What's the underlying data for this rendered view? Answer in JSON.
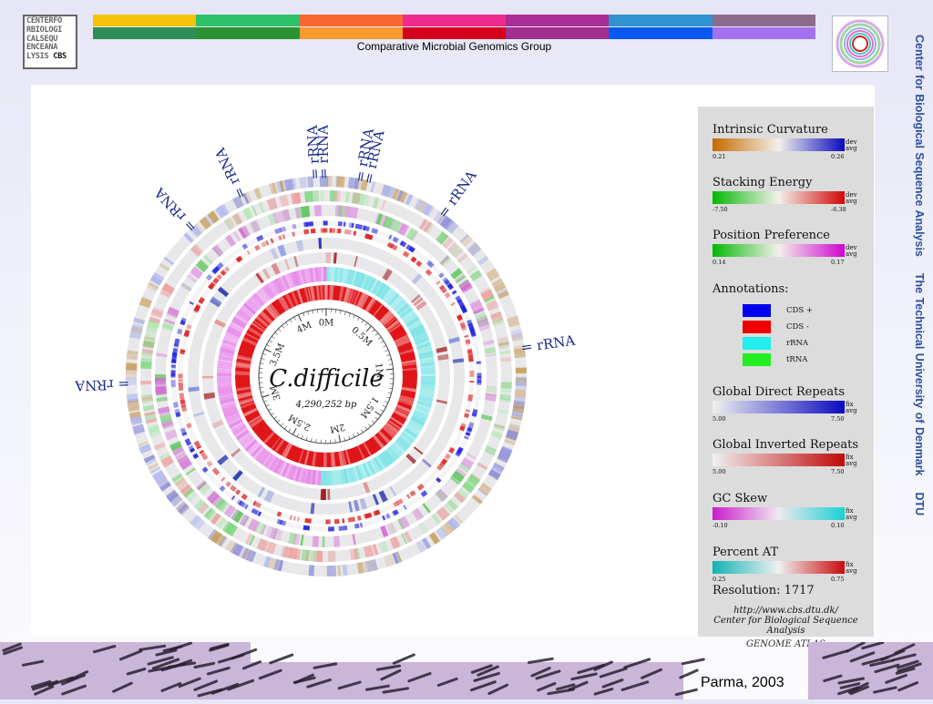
{
  "header": {
    "logo_lines": [
      "CENTERFO",
      "RBIOLOGI",
      "CALSEQU",
      "ENCEANA",
      "LYSIS"
    ],
    "logo_suffix": "CBS",
    "group_title": "Comparative Microbial Genomics Group",
    "bar_colors_top": [
      "#f6c20a",
      "#2bc269",
      "#f86730",
      "#f02b8e",
      "#ab2c94",
      "#2f93d0",
      "#8d6b8c"
    ],
    "bar_colors_bottom": [
      "#2d8f55",
      "#2d9232",
      "#fa9a30",
      "#d5001d",
      "#a12f8f",
      "#0b59f1",
      "#a472f1"
    ]
  },
  "side_text": [
    "Center for Biological Sequence Analysis",
    "The Technical University of Denmark",
    "DTU"
  ],
  "atlas": {
    "organism": "C.difficile",
    "size_label": "4,290,252 bp",
    "scale_labels": [
      "0M",
      "0.5M",
      "1M",
      "1.5M",
      "2M",
      "2.5M",
      "3M",
      "3.5M",
      "4M"
    ],
    "rrna_label": "rRNA",
    "rrna_groups": [
      {
        "count": 1,
        "angle": -42
      },
      {
        "count": 1,
        "angle": -25
      },
      {
        "count": 2,
        "angle": -3
      },
      {
        "count": 2,
        "angle": 10
      },
      {
        "count": 1,
        "angle": 36
      },
      {
        "count": 1,
        "angle": 82
      },
      {
        "count": 1,
        "angle": -92
      }
    ]
  },
  "legend": {
    "sections": [
      {
        "title": "Intrinsic Curvature",
        "tag": [
          "dev",
          "avg"
        ],
        "min": "0.21",
        "max": "0.26",
        "colors": [
          "#c46a00",
          "#f3f0ea",
          "#0a0abf"
        ]
      },
      {
        "title": "Stacking Energy",
        "tag": [
          "dev",
          "avg"
        ],
        "min": "-7.50",
        "max": "-6.38",
        "colors": [
          "#05b805",
          "#f3f0ea",
          "#d10606"
        ]
      },
      {
        "title": "Position Preference",
        "tag": [
          "dev",
          "avg"
        ],
        "min": "0.14",
        "max": "0.17",
        "colors": [
          "#05b805",
          "#f3f0ea",
          "#cf05cf"
        ]
      },
      {
        "title": "Global Direct Repeats",
        "tag": [
          "fix",
          "avg"
        ],
        "min": "5.00",
        "max": "7.50",
        "colors": [
          "#f0f0f0",
          "#0a0abf"
        ]
      },
      {
        "title": "Global Inverted Repeats",
        "tag": [
          "fix",
          "avg"
        ],
        "min": "5.00",
        "max": "7.50",
        "colors": [
          "#f0f0f0",
          "#c00a0a"
        ]
      },
      {
        "title": "GC Skew",
        "tag": [
          "fix",
          "avg"
        ],
        "min": "-0.10",
        "max": "0.10",
        "colors": [
          "#c91ec9",
          "#f0e8f0",
          "#19d1d1"
        ]
      },
      {
        "title": "Percent AT",
        "tag": [
          "fix",
          "avg"
        ],
        "min": "0.25",
        "max": "0.75",
        "colors": [
          "#11b3b3",
          "#f0f0f0",
          "#c90a0a"
        ]
      }
    ],
    "annotations_title": "Annotations:",
    "annotations": [
      {
        "label": "CDS +",
        "color": "#0000ee"
      },
      {
        "label": "CDS -",
        "color": "#ee0000"
      },
      {
        "label": "rRNA",
        "color": "#22eeee"
      },
      {
        "label": "tRNA",
        "color": "#22ee22"
      }
    ],
    "resolution": "Resolution: 1717",
    "url": "http://www.cbs.dtu.dk/",
    "center_name": "Center for Biological Sequence Analysis",
    "footer": "GENOME ATLAS"
  },
  "citation": "Parma, 2003"
}
